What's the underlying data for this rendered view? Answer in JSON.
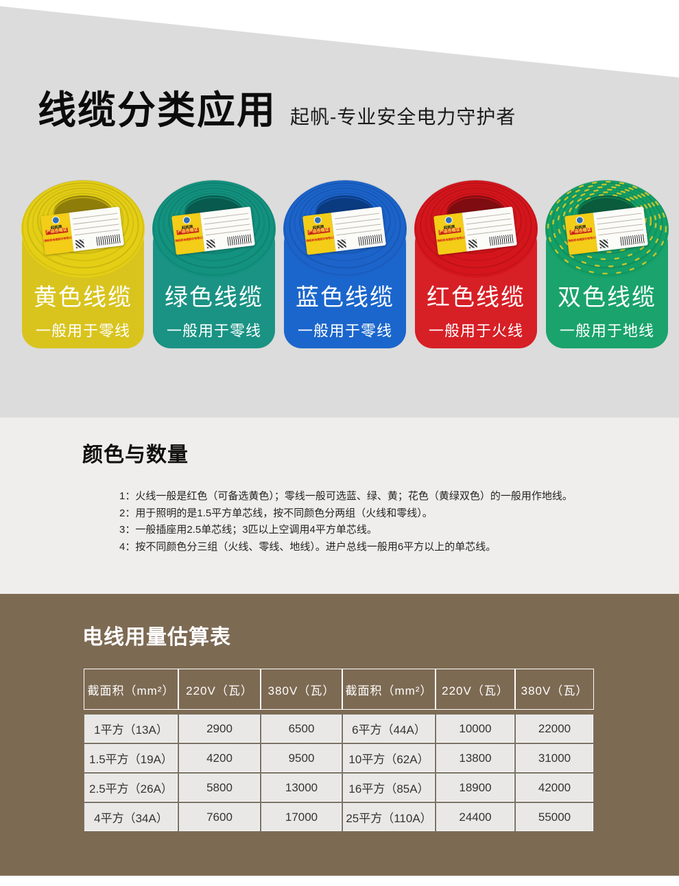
{
  "hero": {
    "title": "线缆分类应用",
    "subtitle": "起帆-专业安全电力守护者"
  },
  "cables": {
    "label": {
      "brand": "起帆牌",
      "cert": "产品合格证",
      "company": "上海起帆电缆股份有限公司"
    },
    "items": [
      {
        "name": "黄色线缆",
        "desc": "一般用于零线",
        "card_color": "#d9c41e",
        "coil_color": "#e4cf15",
        "coil_dark": "#8f7d0a",
        "stripe_color": ""
      },
      {
        "name": "绿色线缆",
        "desc": "一般用于零线",
        "card_color": "#1a9384",
        "coil_color": "#13927f",
        "coil_dark": "#085a4e",
        "stripe_color": ""
      },
      {
        "name": "蓝色线缆",
        "desc": "一般用于零线",
        "card_color": "#1b66cc",
        "coil_color": "#1c64ca",
        "coil_dark": "#0a3a80",
        "stripe_color": ""
      },
      {
        "name": "红色线缆",
        "desc": "一般用于火线",
        "card_color": "#d71f26",
        "coil_color": "#d5151c",
        "coil_dark": "#7f0c10",
        "stripe_color": ""
      },
      {
        "name": "双色线缆",
        "desc": "一般用于地线",
        "card_color": "#1aa36c",
        "coil_color": "#14a067",
        "coil_dark": "#0a5c3c",
        "stripe_color": "#e0cd24"
      }
    ]
  },
  "notes": {
    "heading": "颜色与数量",
    "items": [
      "1：火线一般是红色（可备选黄色）；零线一般可选蓝、绿、黄；花色（黄绿双色）的一般用作地线。",
      "2：用于照明的是1.5平方单芯线，按不同颜色分两组（火线和零线）。",
      "3：一般插座用2.5单芯线；3匹以上空调用4平方单芯线。",
      "4：按不同颜色分三组（火线、零线、地线）。进户总线一般用6平方以上的单芯线。"
    ]
  },
  "usage": {
    "heading": "电线用量估算表",
    "headers": [
      "截面积（mm²）",
      "220V（瓦）",
      "380V（瓦）",
      "截面积（mm²）",
      "220V（瓦）",
      "380V（瓦）"
    ],
    "rows": [
      [
        "1平方（13A）",
        "2900",
        "6500",
        "6平方（44A）",
        "10000",
        "22000"
      ],
      [
        "1.5平方（19A）",
        "4200",
        "9500",
        "10平方（62A）",
        "13800",
        "31000"
      ],
      [
        "2.5平方（26A）",
        "5800",
        "13000",
        "16平方（85A）",
        "18900",
        "42000"
      ],
      [
        "4平方（34A）",
        "7600",
        "17000",
        "25平方（110A）",
        "24400",
        "55000"
      ]
    ]
  },
  "colors": {
    "top_bg": "#dcdcdc",
    "mid_bg": "#efeeec",
    "brown_bg": "#7d6a53",
    "cell_bg": "#e9e8e6",
    "label_yellow": "#f3cd17",
    "cert_red": "#d2281a"
  }
}
